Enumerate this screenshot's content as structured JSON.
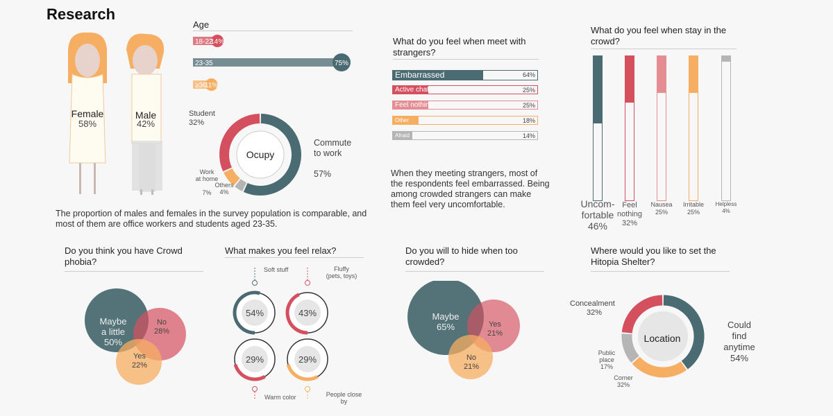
{
  "page_title": "Research",
  "colors": {
    "teal": "#4b6b72",
    "red": "#d5505f",
    "pink": "#e48d93",
    "orange": "#f5ae62",
    "gray": "#b5b5b5",
    "cream": "#fefcf0"
  },
  "gender": {
    "female_label": "Female",
    "female_value": "58%",
    "male_label": "Male",
    "male_value": "42%"
  },
  "summary_text": "The proportion of males and females in the survey population is comparable, and most of them are office workers and students aged 23-35.",
  "strangers_text": "When they meeting strangers, most of the respondents feel embarrassed. Being among crowded strangers can make them feel very uncomfortable.",
  "chart_data": [
    {
      "id": "age",
      "type": "bar",
      "title": "Age",
      "categories": [
        "18-22",
        "23-35",
        "36"
      ],
      "values": [
        14,
        75,
        11
      ],
      "value_labels": [
        "14%",
        "75%",
        "11%"
      ],
      "category_labels": [
        "18-22",
        "23-35",
        "≥36"
      ]
    },
    {
      "id": "occupy",
      "type": "pie",
      "title": "Ocupy",
      "categories": [
        "Commute to work",
        "Others",
        "Work at home",
        "Student"
      ],
      "values": [
        57,
        4,
        7,
        32
      ],
      "labels": [
        {
          "name": "Commute\nto work",
          "value": "57%"
        },
        {
          "name": "Others",
          "value": "4%"
        },
        {
          "name": "Work\nat home",
          "value": "7%"
        },
        {
          "name": "Student",
          "value": "32%"
        }
      ]
    },
    {
      "id": "strangers",
      "type": "bar",
      "title": "What do you feel when meet with strangers?",
      "categories": [
        "Embarrassed",
        "Active chat",
        "Feel nothing",
        "Other",
        "Afraid"
      ],
      "values": [
        64,
        25,
        25,
        18,
        14
      ],
      "value_labels": [
        "64%",
        "25%",
        "25%",
        "18%",
        "14%"
      ]
    },
    {
      "id": "crowd",
      "type": "bar",
      "title": "What do you feel when stay in the crowd?",
      "categories": [
        "Uncom-\nfortable",
        "Feel nothing",
        "Nausea",
        "Irritable",
        "Helpless"
      ],
      "values": [
        46,
        32,
        25,
        25,
        4
      ],
      "value_labels": [
        "46%",
        "32%",
        "25%",
        "25%",
        "4%"
      ]
    },
    {
      "id": "phobia",
      "type": "scatter",
      "title": "Do you think you have Crowd phobia?",
      "categories": [
        "Maybe a little",
        "No",
        "Yes"
      ],
      "values": [
        50,
        28,
        22
      ],
      "labels": [
        {
          "name": "Maybe\na little",
          "value": "50%"
        },
        {
          "name": "No",
          "value": "28%"
        },
        {
          "name": "Yes",
          "value": "22%"
        }
      ]
    },
    {
      "id": "relax",
      "type": "pie",
      "title": "What makes you feel relax?",
      "categories": [
        "Soft stuff",
        "Fluffy (pets, toys)",
        "Warm color",
        "People close by"
      ],
      "values": [
        54,
        43,
        29,
        29
      ],
      "value_labels": [
        "54%",
        "43%",
        "29%",
        "29%"
      ],
      "labels": [
        "Soft stuff",
        "Fluffy\n(pets, toys)",
        "Warm color",
        "People close\nby"
      ]
    },
    {
      "id": "hide",
      "type": "scatter",
      "title": "Do you will to hide when too crowded?",
      "categories": [
        "Maybe",
        "Yes",
        "No"
      ],
      "values": [
        65,
        21,
        21
      ],
      "labels": [
        {
          "name": "Maybe",
          "value": "65%"
        },
        {
          "name": "Yes",
          "value": "21%"
        },
        {
          "name": "No",
          "value": "21%"
        }
      ]
    },
    {
      "id": "shelter",
      "type": "pie",
      "title": "Where would you like to set the Hitopia Shelter?",
      "center_label": "Location",
      "categories": [
        "Could find anytime",
        "Corner",
        "Public place",
        "Concealment"
      ],
      "values": [
        54,
        32,
        17,
        32
      ],
      "labels": [
        {
          "name": "Could\nfind\nanytime",
          "value": "54%"
        },
        {
          "name": "Corner",
          "value": "32%"
        },
        {
          "name": "Public\nplace",
          "value": "17%"
        },
        {
          "name": "Concealment",
          "value": "32%"
        }
      ]
    }
  ]
}
